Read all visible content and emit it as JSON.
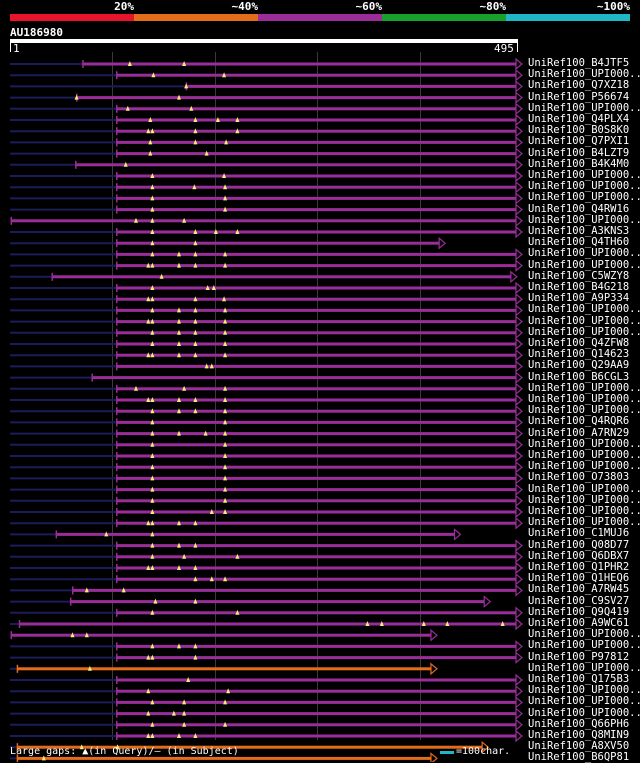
{
  "legend": {
    "labels": [
      "20%",
      "~40%",
      "~60%",
      "~80%",
      "~100%"
    ],
    "colors": [
      "#e8142b",
      "#e46c1a",
      "#9a2d9a",
      "#18a02a",
      "#1fb6c8"
    ]
  },
  "query": {
    "id": "AU186980",
    "start": "1",
    "end": "495"
  },
  "colors": {
    "purple": "#9a2d9a",
    "orange": "#e46c1a",
    "navy": "#1c1c5a",
    "marker": "#f3ef7a"
  },
  "hits": [
    {
      "label": "UniRef100_B4JTF5",
      "color": "purple",
      "start": 72,
      "end": 495,
      "arrow": true,
      "marks": [
        118,
        171
      ]
    },
    {
      "label": "UniRef100_UPI000..",
      "color": "purple",
      "start": 105,
      "end": 495,
      "arrow": true,
      "marks": [
        141,
        210
      ]
    },
    {
      "label": "UniRef100_Q7XZ18",
      "color": "purple",
      "start": 173,
      "end": 495,
      "arrow": true,
      "marks": [
        173
      ]
    },
    {
      "label": "UniRef100_P56674",
      "color": "purple",
      "start": 66,
      "end": 495,
      "arrow": true,
      "marks": [
        66,
        166
      ]
    },
    {
      "label": "UniRef100_UPI000..",
      "color": "purple",
      "start": 105,
      "end": 495,
      "arrow": true,
      "marks": [
        116,
        178
      ]
    },
    {
      "label": "UniRef100_Q4PLX4",
      "color": "purple",
      "start": 105,
      "end": 495,
      "arrow": true,
      "marks": [
        138,
        182,
        204,
        223
      ]
    },
    {
      "label": "UniRef100_B0S8K0",
      "color": "purple",
      "start": 105,
      "end": 495,
      "arrow": true,
      "marks": [
        136,
        140,
        182,
        223
      ]
    },
    {
      "label": "UniRef100_Q7PXI1",
      "color": "purple",
      "start": 105,
      "end": 495,
      "arrow": true,
      "marks": [
        138,
        182,
        212
      ]
    },
    {
      "label": "UniRef100_B4LZT9",
      "color": "purple",
      "start": 105,
      "end": 495,
      "arrow": true,
      "marks": [
        138,
        193
      ]
    },
    {
      "label": "UniRef100_B4K4M0",
      "color": "purple",
      "start": 65,
      "end": 495,
      "arrow": true,
      "marks": [
        114
      ]
    },
    {
      "label": "UniRef100_UPI000..",
      "color": "purple",
      "start": 105,
      "end": 495,
      "arrow": true,
      "marks": [
        140,
        210
      ]
    },
    {
      "label": "UniRef100_UPI000..",
      "color": "purple",
      "start": 105,
      "end": 495,
      "arrow": true,
      "marks": [
        140,
        181,
        211
      ]
    },
    {
      "label": "UniRef100_UPI000..",
      "color": "purple",
      "start": 105,
      "end": 495,
      "arrow": true,
      "marks": [
        140,
        211
      ]
    },
    {
      "label": "UniRef100_Q4RW16",
      "color": "purple",
      "start": 105,
      "end": 495,
      "arrow": true,
      "marks": [
        140,
        211
      ]
    },
    {
      "label": "UniRef100_UPI000..",
      "color": "purple",
      "start": 2,
      "end": 495,
      "arrow": true,
      "marks": [
        124,
        140,
        171
      ]
    },
    {
      "label": "UniRef100_A3KNS3",
      "color": "purple",
      "start": 105,
      "end": 495,
      "arrow": true,
      "marks": [
        140,
        182,
        202,
        223
      ]
    },
    {
      "label": "UniRef100_Q4TH60",
      "color": "purple",
      "start": 105,
      "end": 420,
      "arrow": true,
      "marks": [
        140,
        182
      ]
    },
    {
      "label": "UniRef100_UPI000..",
      "color": "purple",
      "start": 105,
      "end": 495,
      "arrow": true,
      "marks": [
        140,
        166,
        182,
        211
      ]
    },
    {
      "label": "UniRef100_UPI000..",
      "color": "purple",
      "start": 105,
      "end": 495,
      "arrow": true,
      "marks": [
        136,
        140,
        166,
        182,
        211
      ]
    },
    {
      "label": "UniRef100_C5WZY8",
      "color": "purple",
      "start": 42,
      "end": 490,
      "arrow": true,
      "marks": [
        149
      ]
    },
    {
      "label": "UniRef100_B4G218",
      "color": "purple",
      "start": 105,
      "end": 495,
      "arrow": true,
      "marks": [
        140,
        194,
        200
      ]
    },
    {
      "label": "UniRef100_A9P334",
      "color": "purple",
      "start": 105,
      "end": 495,
      "arrow": true,
      "marks": [
        136,
        140,
        182,
        210
      ]
    },
    {
      "label": "UniRef100_UPI000..",
      "color": "purple",
      "start": 105,
      "end": 495,
      "arrow": true,
      "marks": [
        140,
        166,
        182,
        211
      ]
    },
    {
      "label": "UniRef100_UPI000..",
      "color": "purple",
      "start": 105,
      "end": 495,
      "arrow": true,
      "marks": [
        136,
        140,
        166,
        182,
        211
      ]
    },
    {
      "label": "UniRef100_UPI000..",
      "color": "purple",
      "start": 105,
      "end": 495,
      "arrow": true,
      "marks": [
        140,
        166,
        182,
        211
      ]
    },
    {
      "label": "UniRef100_Q4ZFW8",
      "color": "purple",
      "start": 105,
      "end": 495,
      "arrow": true,
      "marks": [
        140,
        166,
        182,
        211
      ]
    },
    {
      "label": "UniRef100_Q14623",
      "color": "purple",
      "start": 105,
      "end": 495,
      "arrow": true,
      "marks": [
        136,
        140,
        166,
        182,
        211
      ]
    },
    {
      "label": "UniRef100_Q29AA9",
      "color": "purple",
      "start": 105,
      "end": 495,
      "arrow": true,
      "marks": [
        193,
        198
      ]
    },
    {
      "label": "UniRef100_B6CGL3",
      "color": "purple",
      "start": 81,
      "end": 495,
      "arrow": true,
      "marks": []
    },
    {
      "label": "UniRef100_UPI000..",
      "color": "purple",
      "start": 105,
      "end": 495,
      "arrow": true,
      "marks": [
        124,
        171,
        211
      ]
    },
    {
      "label": "UniRef100_UPI000..",
      "color": "purple",
      "start": 105,
      "end": 495,
      "arrow": true,
      "marks": [
        136,
        140,
        166,
        182,
        211
      ]
    },
    {
      "label": "UniRef100_UPI000..",
      "color": "purple",
      "start": 105,
      "end": 495,
      "arrow": true,
      "marks": [
        140,
        166,
        182,
        211
      ]
    },
    {
      "label": "UniRef100_Q4RQR6",
      "color": "purple",
      "start": 105,
      "end": 495,
      "arrow": true,
      "marks": [
        140,
        211
      ]
    },
    {
      "label": "UniRef100_A7RN29",
      "color": "purple",
      "start": 105,
      "end": 495,
      "arrow": true,
      "marks": [
        140,
        166,
        192,
        211
      ]
    },
    {
      "label": "UniRef100_UPI000..",
      "color": "purple",
      "start": 105,
      "end": 495,
      "arrow": true,
      "marks": [
        140,
        211
      ]
    },
    {
      "label": "UniRef100_UPI000..",
      "color": "purple",
      "start": 105,
      "end": 495,
      "arrow": true,
      "marks": [
        140,
        211
      ]
    },
    {
      "label": "UniRef100_UPI000..",
      "color": "purple",
      "start": 105,
      "end": 495,
      "arrow": true,
      "marks": [
        140,
        211
      ]
    },
    {
      "label": "UniRef100_O73803",
      "color": "purple",
      "start": 105,
      "end": 495,
      "arrow": true,
      "marks": [
        140,
        211
      ]
    },
    {
      "label": "UniRef100_UPI000..",
      "color": "purple",
      "start": 105,
      "end": 495,
      "arrow": true,
      "marks": [
        140,
        211
      ]
    },
    {
      "label": "UniRef100_UPI000..",
      "color": "purple",
      "start": 105,
      "end": 495,
      "arrow": true,
      "marks": [
        140,
        211
      ]
    },
    {
      "label": "UniRef100_UPI000..",
      "color": "purple",
      "start": 105,
      "end": 495,
      "arrow": true,
      "marks": [
        140,
        198,
        211
      ]
    },
    {
      "label": "UniRef100_UPI000..",
      "color": "purple",
      "start": 105,
      "end": 495,
      "arrow": true,
      "marks": [
        136,
        140,
        166,
        182
      ]
    },
    {
      "label": "UniRef100_C1MUJ6",
      "color": "purple",
      "start": 46,
      "end": 435,
      "arrow": true,
      "marks": [
        95,
        140
      ]
    },
    {
      "label": "UniRef100_Q08D77",
      "color": "purple",
      "start": 105,
      "end": 495,
      "arrow": true,
      "marks": [
        140,
        166,
        182
      ]
    },
    {
      "label": "UniRef100_Q6DBX7",
      "color": "purple",
      "start": 105,
      "end": 495,
      "arrow": true,
      "marks": [
        140,
        171,
        223
      ]
    },
    {
      "label": "UniRef100_Q1PHR2",
      "color": "purple",
      "start": 105,
      "end": 495,
      "arrow": true,
      "marks": [
        136,
        140,
        166,
        182
      ]
    },
    {
      "label": "UniRef100_Q1HEQ6",
      "color": "purple",
      "start": 105,
      "end": 495,
      "arrow": true,
      "marks": [
        182,
        198,
        211
      ]
    },
    {
      "label": "UniRef100_A7RW45",
      "color": "purple",
      "start": 62,
      "end": 495,
      "arrow": true,
      "marks": [
        76,
        112
      ]
    },
    {
      "label": "UniRef100_C9SV27",
      "color": "purple",
      "start": 60,
      "end": 464,
      "arrow": true,
      "marks": [
        143,
        182
      ]
    },
    {
      "label": "UniRef100_Q9Q419",
      "color": "purple",
      "start": 105,
      "end": 495,
      "arrow": true,
      "marks": [
        140,
        223
      ]
    },
    {
      "label": "UniRef100_A9WC61",
      "color": "purple",
      "start": 10,
      "end": 495,
      "arrow": true,
      "marks": [
        350,
        364,
        405,
        428,
        482
      ]
    },
    {
      "label": "UniRef100_UPI000..",
      "color": "purple",
      "start": 2,
      "end": 412,
      "arrow": true,
      "marks": [
        62,
        76
      ]
    },
    {
      "label": "UniRef100_UPI000..",
      "color": "purple",
      "start": 105,
      "end": 495,
      "arrow": true,
      "marks": [
        140,
        166,
        182
      ]
    },
    {
      "label": "UniRef100_P97812",
      "color": "purple",
      "start": 105,
      "end": 495,
      "arrow": true,
      "marks": [
        136,
        140,
        182
      ]
    },
    {
      "label": "UniRef100_UPI000..",
      "color": "orange",
      "start": 8,
      "end": 412,
      "arrow": true,
      "marks": [
        79
      ]
    },
    {
      "label": "UniRef100_Q175B3",
      "color": "purple",
      "start": 105,
      "end": 495,
      "arrow": true,
      "marks": [
        175
      ]
    },
    {
      "label": "UniRef100_UPI000..",
      "color": "purple",
      "start": 105,
      "end": 495,
      "arrow": true,
      "marks": [
        136,
        214
      ]
    },
    {
      "label": "UniRef100_UPI000..",
      "color": "purple",
      "start": 105,
      "end": 495,
      "arrow": true,
      "marks": [
        140,
        171,
        211
      ]
    },
    {
      "label": "UniRef100_UPI000..",
      "color": "purple",
      "start": 105,
      "end": 495,
      "arrow": true,
      "marks": [
        136,
        161,
        171
      ]
    },
    {
      "label": "UniRef100_Q66PH6",
      "color": "purple",
      "start": 105,
      "end": 495,
      "arrow": true,
      "marks": [
        140,
        171,
        211
      ]
    },
    {
      "label": "UniRef100_Q8MIN9",
      "color": "purple",
      "start": 105,
      "end": 495,
      "arrow": true,
      "marks": [
        136,
        140,
        166,
        182
      ]
    },
    {
      "label": "UniRef100_A8XV50",
      "color": "orange",
      "start": 8,
      "end": 462,
      "arrow": true,
      "marks": [
        71,
        106
      ]
    },
    {
      "label": "UniRef100_B6QP81",
      "color": "orange",
      "start": 8,
      "end": 412,
      "arrow": true,
      "marks": [
        34
      ]
    }
  ],
  "footer": {
    "text": "Large gaps: ▲(in Query)/– (in Subject)",
    "scale_label": "=100char."
  }
}
